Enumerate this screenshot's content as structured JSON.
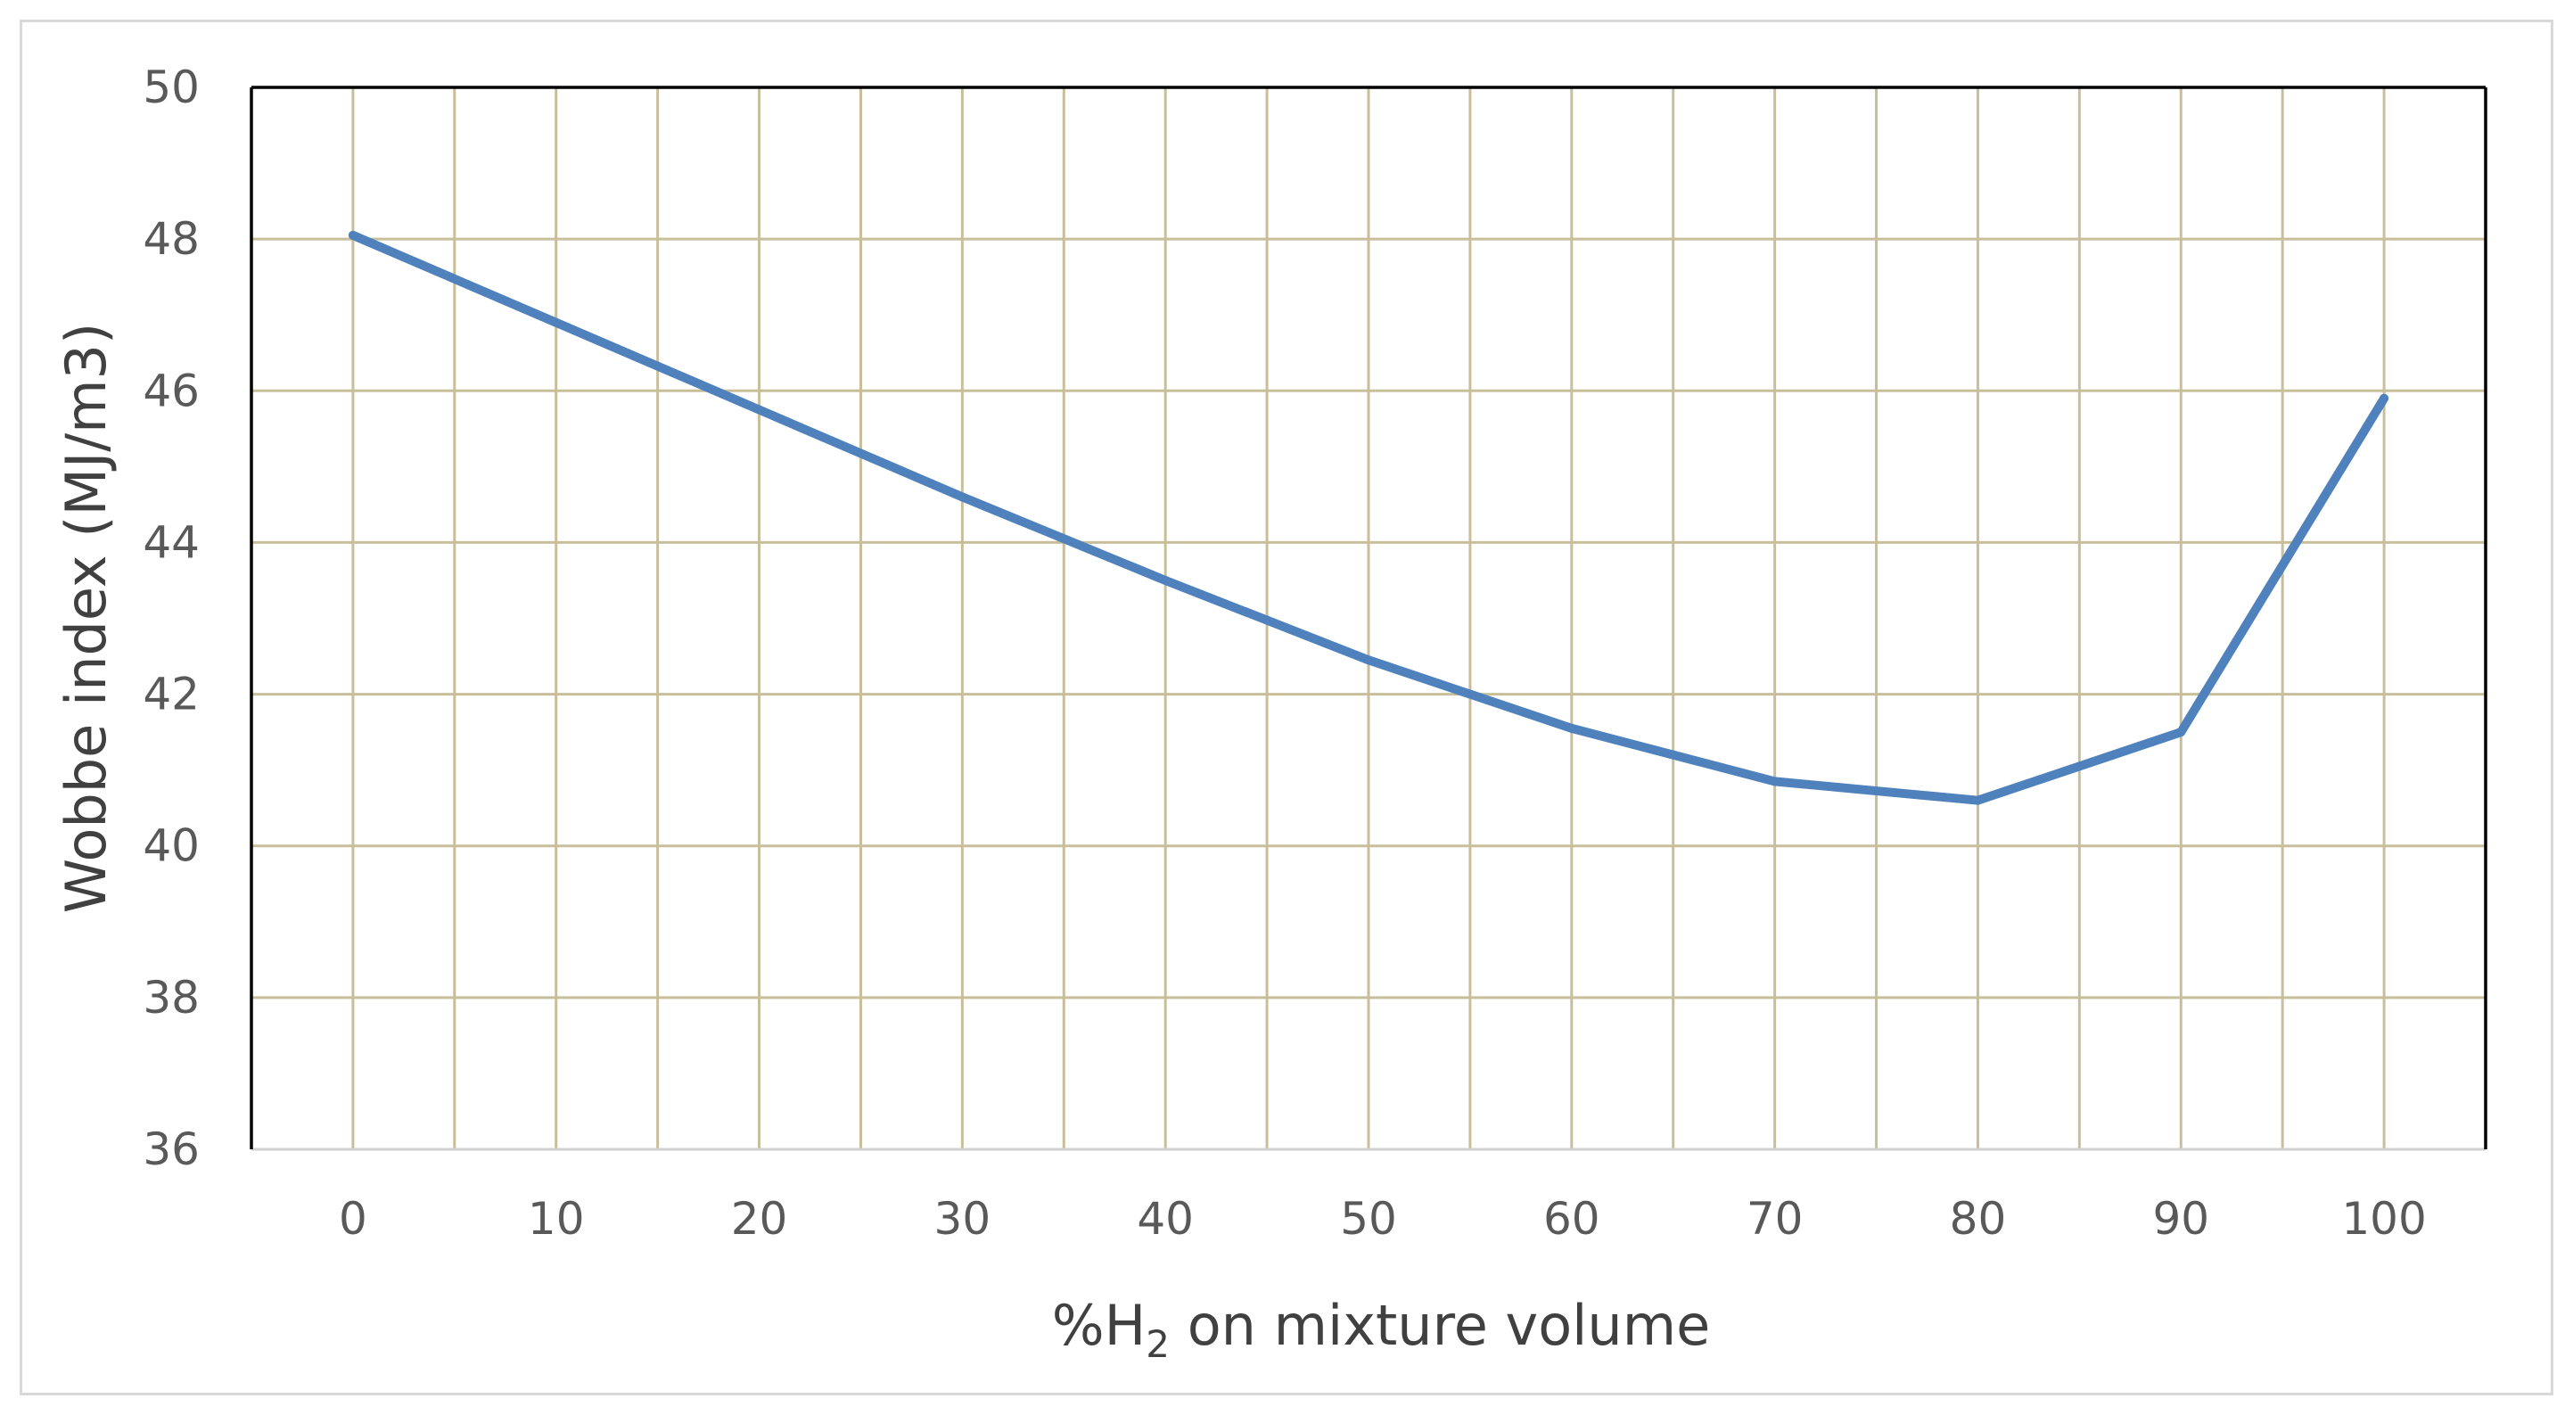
{
  "chart_data": {
    "type": "line",
    "title": "",
    "xlabel": "%H2 on mixture volume",
    "xlabel_parts": {
      "before": "%H",
      "subscript": "2",
      "after": " on mixture volume"
    },
    "ylabel": "Wobbe index (MJ/m3)",
    "x": [
      0,
      10,
      20,
      30,
      40,
      50,
      60,
      70,
      80,
      90,
      100
    ],
    "x_tick_labels": [
      "0",
      "10",
      "20",
      "30",
      "40",
      "50",
      "60",
      "70",
      "80",
      "90",
      "100"
    ],
    "y_tick_labels": [
      "36",
      "38",
      "40",
      "42",
      "44",
      "46",
      "48",
      "50"
    ],
    "xlim": [
      -5,
      105
    ],
    "ylim": [
      36,
      50
    ],
    "x_minor_step": 5,
    "y_major_step": 2,
    "grid": true,
    "legend": "none",
    "series": [
      {
        "values": [
          48.05,
          46.9,
          45.75,
          44.6,
          43.5,
          42.45,
          41.55,
          40.85,
          40.6,
          41.5,
          45.9
        ]
      }
    ],
    "colors": {
      "line": "#4f81bd",
      "grid": "#c8bf9a",
      "axis": "#000000",
      "frame": "#d9d9d9"
    }
  }
}
